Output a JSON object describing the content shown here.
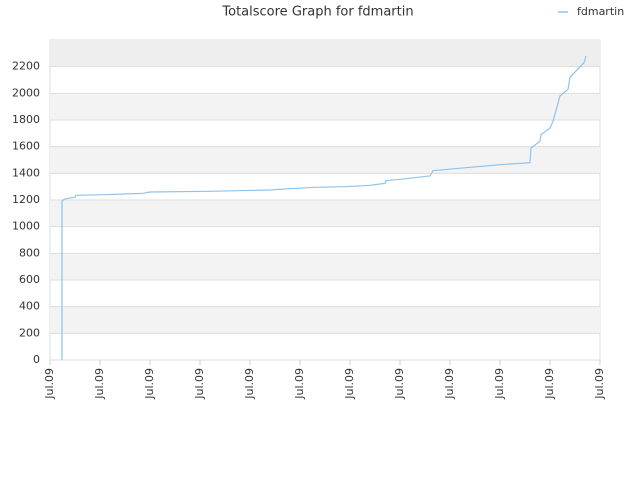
{
  "chart_data": {
    "type": "line",
    "title": "Totalscore Graph for fdmartin",
    "series": [
      {
        "name": "fdmartin",
        "color": "#8ec3ee",
        "x": [
          0.24,
          0.24,
          0.28,
          0.32,
          0.5,
          0.52,
          1.1,
          1.86,
          2.0,
          3.2,
          4.4,
          4.8,
          5.3,
          5.9,
          6.4,
          6.7,
          6.72,
          7.0,
          7.6,
          7.66,
          8.1,
          9.0,
          9.6,
          9.62,
          9.8,
          9.82,
          10.0,
          10.06,
          10.2,
          10.36,
          10.4,
          10.68,
          10.72
        ],
        "values": [
          0,
          1190,
          1205,
          1210,
          1220,
          1235,
          1240,
          1250,
          1260,
          1265,
          1275,
          1285,
          1295,
          1300,
          1310,
          1325,
          1345,
          1355,
          1380,
          1420,
          1435,
          1465,
          1480,
          1590,
          1640,
          1690,
          1740,
          1790,
          1980,
          2030,
          2120,
          2230,
          2280
        ]
      }
    ],
    "xlim": [
      0,
      11
    ],
    "xticks": [
      {
        "value": 0,
        "label": "Jul.09"
      },
      {
        "value": 1,
        "label": "Jul.09"
      },
      {
        "value": 2,
        "label": "Jul.09"
      },
      {
        "value": 3,
        "label": "Jul.09"
      },
      {
        "value": 4,
        "label": "Jul.09"
      },
      {
        "value": 5,
        "label": "Jul.09"
      },
      {
        "value": 6,
        "label": "Jul.09"
      },
      {
        "value": 7,
        "label": "Jul.09"
      },
      {
        "value": 8,
        "label": "Jul.09"
      },
      {
        "value": 9,
        "label": "Jul.09"
      },
      {
        "value": 10,
        "label": "Jul.09"
      },
      {
        "value": 11,
        "label": "Jul.09"
      }
    ],
    "ylim": [
      0,
      2400
    ],
    "yticks": [
      0,
      200,
      400,
      600,
      800,
      1000,
      1200,
      1400,
      1600,
      1800,
      2000,
      2200
    ],
    "grid": true,
    "legend": "top-right"
  }
}
